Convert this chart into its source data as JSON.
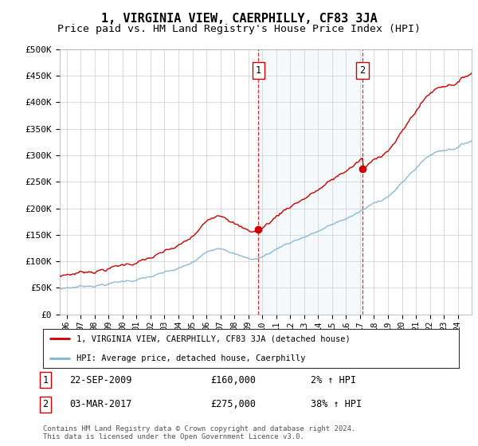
{
  "title": "1, VIRGINIA VIEW, CAERPHILLY, CF83 3JA",
  "subtitle": "Price paid vs. HM Land Registry's House Price Index (HPI)",
  "title_fontsize": 11,
  "subtitle_fontsize": 9.5,
  "ylim": [
    0,
    500000
  ],
  "yticks": [
    0,
    50000,
    100000,
    150000,
    200000,
    250000,
    300000,
    350000,
    400000,
    450000,
    500000
  ],
  "ytick_labels": [
    "£0",
    "£50K",
    "£100K",
    "£150K",
    "£200K",
    "£250K",
    "£300K",
    "£350K",
    "£400K",
    "£450K",
    "£500K"
  ],
  "xlim_start": 1995.5,
  "xlim_end": 2025.0,
  "sale1_date": 2009.72,
  "sale1_price": 160000,
  "sale1_label": "22-SEP-2009",
  "sale2_date": 2017.17,
  "sale2_price": 275000,
  "sale2_label": "03-MAR-2017",
  "legend_line1": "1, VIRGINIA VIEW, CAERPHILLY, CF83 3JA (detached house)",
  "legend_line2": "HPI: Average price, detached house, Caerphilly",
  "footer1": "Contains HM Land Registry data © Crown copyright and database right 2024.",
  "footer2": "This data is licensed under the Open Government Licence v3.0.",
  "red_color": "#cc0000",
  "blue_color": "#7fb3d3",
  "bg_color": "#ffffff",
  "grid_color": "#cccccc",
  "vspan_color": "#ddeeff",
  "xtick_years": [
    1996,
    1997,
    1998,
    1999,
    2000,
    2001,
    2002,
    2003,
    2004,
    2005,
    2006,
    2007,
    2008,
    2009,
    2010,
    2011,
    2012,
    2013,
    2014,
    2015,
    2016,
    2017,
    2018,
    2019,
    2020,
    2021,
    2022,
    2023,
    2024
  ]
}
